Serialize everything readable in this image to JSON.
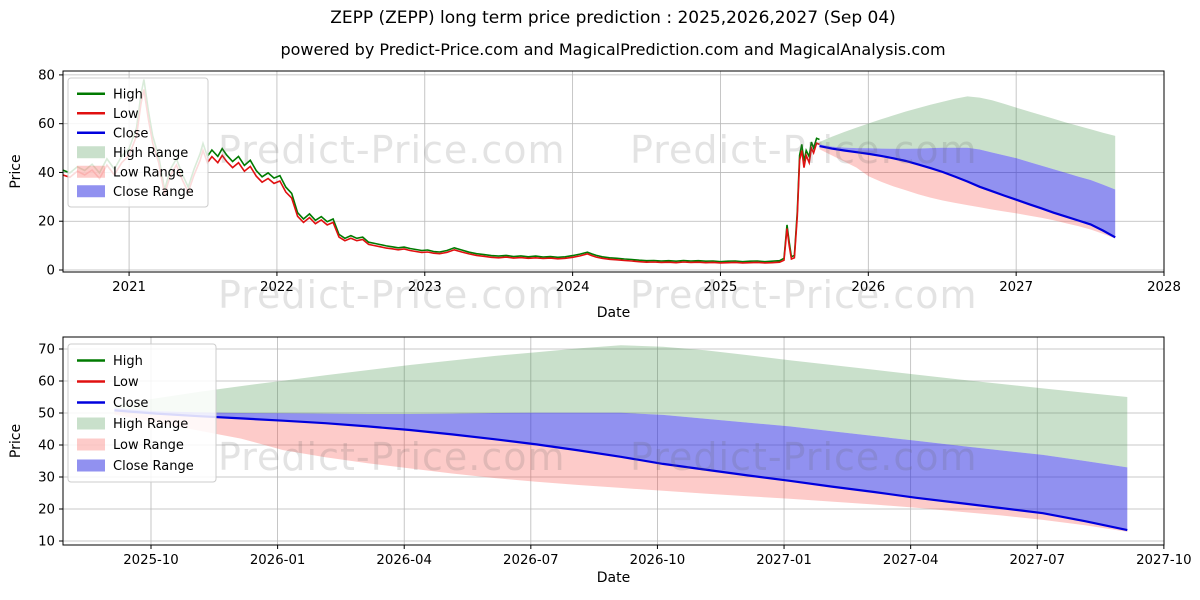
{
  "header": {
    "title": "ZEPP (ZEPP) long term price prediction : 2025,2026,2027 (Sep 04)",
    "subtitle": "powered by Predict-Price.com and MagicalPrediction.com and MagicalAnalysis.com"
  },
  "watermark": {
    "text": "Predict-Price.com"
  },
  "colors": {
    "high_line": "#007a00",
    "low_line": "#e01010",
    "close_line": "#0000dd",
    "high_band": "rgba(60,145,70,0.28)",
    "low_band": "rgba(248,70,60,0.28)",
    "close_band": "rgba(35,35,225,0.50)",
    "grid": "#b8b8b8",
    "spine": "#000000",
    "text": "#000000"
  },
  "legend": {
    "items": [
      {
        "label": "High",
        "swatch": "line",
        "color": "high_line"
      },
      {
        "label": "Low",
        "swatch": "line",
        "color": "low_line"
      },
      {
        "label": "Close",
        "swatch": "line",
        "color": "close_line"
      },
      {
        "label": "High Range",
        "swatch": "patch",
        "color": "high_band"
      },
      {
        "label": "Low Range",
        "swatch": "patch",
        "color": "low_band"
      },
      {
        "label": "Close Range",
        "swatch": "patch",
        "color": "close_band"
      }
    ]
  },
  "chart_data": {
    "type": "line",
    "historical": {
      "x": [
        2020.55,
        2020.6,
        2020.65,
        2020.7,
        2020.75,
        2020.8,
        2020.85,
        2020.9,
        2020.95,
        2021.0,
        2021.05,
        2021.08,
        2021.1,
        2021.13,
        2021.16,
        2021.2,
        2021.24,
        2021.28,
        2021.32,
        2021.36,
        2021.4,
        2021.44,
        2021.48,
        2021.5,
        2021.53,
        2021.56,
        2021.6,
        2021.63,
        2021.66,
        2021.7,
        2021.74,
        2021.78,
        2021.82,
        2021.86,
        2021.9,
        2021.94,
        2021.98,
        2022.02,
        2022.06,
        2022.1,
        2022.14,
        2022.18,
        2022.22,
        2022.26,
        2022.3,
        2022.34,
        2022.38,
        2022.42,
        2022.46,
        2022.5,
        2022.54,
        2022.58,
        2022.62,
        2022.66,
        2022.7,
        2022.74,
        2022.78,
        2022.82,
        2022.86,
        2022.9,
        2022.94,
        2022.98,
        2023.02,
        2023.06,
        2023.1,
        2023.15,
        2023.2,
        2023.25,
        2023.3,
        2023.35,
        2023.4,
        2023.45,
        2023.5,
        2023.55,
        2023.6,
        2023.65,
        2023.7,
        2023.75,
        2023.8,
        2023.85,
        2023.9,
        2023.95,
        2024.0,
        2024.05,
        2024.1,
        2024.13,
        2024.16,
        2024.2,
        2024.25,
        2024.3,
        2024.35,
        2024.4,
        2024.45,
        2024.5,
        2024.55,
        2024.6,
        2024.65,
        2024.7,
        2024.75,
        2024.8,
        2024.85,
        2024.9,
        2024.95,
        2025.0,
        2025.05,
        2025.1,
        2025.15,
        2025.2,
        2025.25,
        2025.3,
        2025.35,
        2025.4,
        2025.43,
        2025.45,
        2025.465,
        2025.48,
        2025.5,
        2025.52,
        2025.535,
        2025.55,
        2025.565,
        2025.58,
        2025.6,
        2025.615,
        2025.63,
        2025.65,
        2025.67
      ],
      "low": [
        39,
        38,
        40.5,
        39,
        41,
        37.5,
        43,
        39,
        44,
        47,
        55,
        68,
        74,
        62,
        52,
        44,
        31,
        39,
        43,
        37,
        32,
        39,
        45,
        49,
        44,
        46.5,
        44,
        47,
        44.5,
        42,
        44,
        40.5,
        42.5,
        38.5,
        36,
        37.5,
        35.5,
        36.5,
        32,
        29.5,
        22,
        19.5,
        21.5,
        19,
        20.5,
        18.5,
        19.5,
        13.5,
        12,
        13,
        12,
        12.5,
        10.5,
        10,
        9.5,
        9,
        8.7,
        8.3,
        8.6,
        8,
        7.6,
        7.2,
        7.4,
        6.9,
        6.7,
        7.2,
        8.3,
        7.4,
        6.6,
        6,
        5.6,
        5.2,
        5,
        5.3,
        4.9,
        5.1,
        4.8,
        5,
        4.7,
        4.9,
        4.6,
        4.8,
        5.2,
        5.8,
        6.6,
        5.9,
        5.3,
        4.8,
        4.4,
        4.2,
        3.9,
        3.7,
        3.4,
        3.2,
        3.3,
        3.1,
        3.2,
        3,
        3.3,
        3.1,
        3.2,
        3,
        3.1,
        2.9,
        3,
        3.1,
        2.9,
        3,
        3.1,
        2.9,
        3,
        3.2,
        4,
        17,
        10,
        4.5,
        5,
        22,
        45,
        49,
        42,
        47,
        44,
        50,
        48,
        52,
        51.5
      ],
      "high": [
        41,
        39.8,
        42.3,
        40.8,
        43.4,
        39.8,
        45.6,
        41.4,
        46.6,
        49.8,
        58.2,
        71.8,
        78.1,
        65.5,
        55,
        46.6,
        33,
        41.4,
        45.6,
        39.3,
        34,
        41.4,
        47.7,
        51.9,
        46.6,
        49.2,
        46.6,
        49.8,
        47.1,
        44.5,
        46.6,
        42.9,
        45,
        40.8,
        38.2,
        39.8,
        37.7,
        38.7,
        34,
        31.4,
        23.5,
        20.9,
        23,
        20.4,
        21.9,
        19.8,
        20.9,
        14.6,
        13,
        14.1,
        13,
        13.5,
        11.4,
        10.9,
        10.4,
        9.9,
        9.5,
        9.1,
        9.4,
        8.8,
        8.4,
        8,
        8.2,
        7.6,
        7.4,
        8,
        9.1,
        8.2,
        7.3,
        6.7,
        6.3,
        5.9,
        5.7,
        6,
        5.5,
        5.8,
        5.4,
        5.7,
        5.3,
        5.5,
        5.2,
        5.4,
        5.9,
        6.5,
        7.3,
        6.6,
        6,
        5.4,
        5,
        4.8,
        4.5,
        4.3,
        4,
        3.8,
        3.9,
        3.7,
        3.8,
        3.6,
        3.9,
        3.7,
        3.8,
        3.6,
        3.7,
        3.4,
        3.6,
        3.7,
        3.4,
        3.6,
        3.7,
        3.4,
        3.6,
        3.8,
        4.8,
        18.5,
        11.5,
        5.4,
        6,
        24,
        47,
        51.5,
        44.5,
        49,
        46.5,
        52.5,
        50,
        54,
        53.5
      ]
    },
    "prediction": {
      "start_year": 2025.67,
      "months": [
        "2025-09",
        "2025-10",
        "2025-11",
        "2025-12",
        "2026-01",
        "2026-02",
        "2026-03",
        "2026-04",
        "2026-05",
        "2026-06",
        "2026-07",
        "2026-08",
        "2026-09",
        "2026-10",
        "2026-11",
        "2026-12",
        "2027-01",
        "2027-02",
        "2027-03",
        "2027-04",
        "2027-05",
        "2027-06",
        "2027-07",
        "2027-08",
        "2027-09"
      ],
      "close": [
        50.8,
        49.8,
        49.0,
        48.3,
        47.6,
        46.8,
        45.8,
        44.7,
        43.3,
        41.8,
        40.2,
        38.3,
        36.3,
        34.1,
        32.3,
        30.5,
        28.8,
        27.0,
        25.3,
        23.5,
        21.9,
        20.3,
        18.7,
        16.2,
        13.4
      ],
      "close_range_top": [
        51.5,
        50.6,
        50.2,
        50.0,
        49.9,
        49.8,
        49.7,
        49.7,
        49.8,
        50.0,
        50.1,
        50.1,
        50.1,
        49.4,
        48.2,
        47.0,
        45.8,
        44.3,
        42.8,
        41.3,
        39.8,
        38.3,
        36.9,
        35.0,
        33.0
      ],
      "high_range_top": [
        52.5,
        54.6,
        56.6,
        58.4,
        60.1,
        61.8,
        63.4,
        65.0,
        66.4,
        67.8,
        69.0,
        70.2,
        71.2,
        70.7,
        69.6,
        68.1,
        66.5,
        65.0,
        63.5,
        62.0,
        60.5,
        59.1,
        57.7,
        56.3,
        55.0
      ],
      "low_range_bottom": [
        49.5,
        47.0,
        44.5,
        42.0,
        38.4,
        36.2,
        34.3,
        32.7,
        31.1,
        29.7,
        28.5,
        27.5,
        26.6,
        25.7,
        24.8,
        24.0,
        23.2,
        22.3,
        21.4,
        20.4,
        19.2,
        18.0,
        16.6,
        14.9,
        12.9
      ]
    },
    "panels": [
      {
        "id": "top",
        "xlabel": "Date",
        "ylabel": "Price",
        "x_range": [
          2020.553,
          2028.0
        ],
        "y_range": [
          -0.82,
          81.6
        ],
        "x_ticks": [
          {
            "v": 2021,
            "label": "2021"
          },
          {
            "v": 2022,
            "label": "2022"
          },
          {
            "v": 2023,
            "label": "2023"
          },
          {
            "v": 2024,
            "label": "2024"
          },
          {
            "v": 2025,
            "label": "2025"
          },
          {
            "v": 2026,
            "label": "2026"
          },
          {
            "v": 2027,
            "label": "2027"
          },
          {
            "v": 2028,
            "label": "2028"
          }
        ],
        "y_ticks": [
          {
            "v": 0,
            "label": "0"
          },
          {
            "v": 20,
            "label": "20"
          },
          {
            "v": 40,
            "label": "40"
          },
          {
            "v": 60,
            "label": "60"
          },
          {
            "v": 80,
            "label": "80"
          }
        ],
        "grid": true,
        "legend_position": "upper left",
        "has_historical": true,
        "prediction_x_units": "years"
      },
      {
        "id": "bottom",
        "xlabel": "Date",
        "ylabel": "Price",
        "x_range": [
          -1.218,
          24.87
        ],
        "y_range": [
          8.75,
          73.75
        ],
        "x_ticks": [
          {
            "v": 0.867,
            "label": "2025-10"
          },
          {
            "v": 3.867,
            "label": "2026-01"
          },
          {
            "v": 6.867,
            "label": "2026-04"
          },
          {
            "v": 9.867,
            "label": "2026-07"
          },
          {
            "v": 12.867,
            "label": "2026-10"
          },
          {
            "v": 15.867,
            "label": "2027-01"
          },
          {
            "v": 18.867,
            "label": "2027-04"
          },
          {
            "v": 21.867,
            "label": "2027-07"
          },
          {
            "v": 24.867,
            "label": "2027-10"
          }
        ],
        "y_ticks": [
          {
            "v": 10,
            "label": "10"
          },
          {
            "v": 20,
            "label": "20"
          },
          {
            "v": 30,
            "label": "30"
          },
          {
            "v": 40,
            "label": "40"
          },
          {
            "v": 50,
            "label": "50"
          },
          {
            "v": 60,
            "label": "60"
          },
          {
            "v": 70,
            "label": "70"
          }
        ],
        "grid": true,
        "legend_position": "upper left",
        "has_historical": false,
        "prediction_x_units": "months"
      }
    ]
  }
}
